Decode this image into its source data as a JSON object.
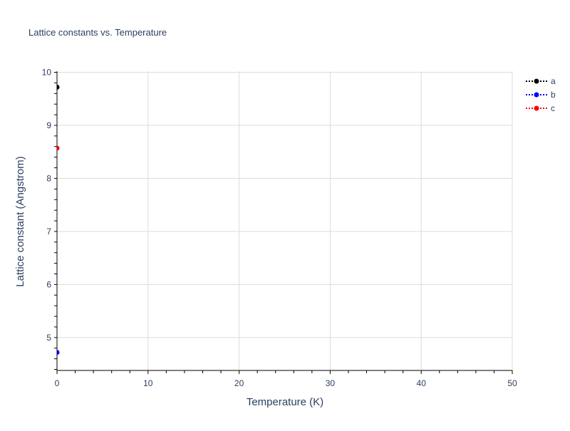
{
  "chart_data": {
    "type": "line",
    "title": "Lattice constants vs. Temperature",
    "xlabel": "Temperature (K)",
    "ylabel": "Lattice constant (Angstrom)",
    "xlim": [
      0,
      50
    ],
    "ylim": [
      4.38,
      10.02
    ],
    "xticks": [
      0,
      10,
      20,
      30,
      40,
      50
    ],
    "yticks": [
      5,
      6,
      7,
      8,
      9,
      10
    ],
    "grid": true,
    "legend_position": "top-right",
    "series": [
      {
        "name": "a",
        "color": "#000000",
        "x": [
          0
        ],
        "y": [
          9.72
        ]
      },
      {
        "name": "b",
        "color": "#0000ff",
        "x": [
          0
        ],
        "y": [
          4.72
        ]
      },
      {
        "name": "c",
        "color": "#ff0000",
        "x": [
          0
        ],
        "y": [
          8.57
        ]
      }
    ]
  }
}
